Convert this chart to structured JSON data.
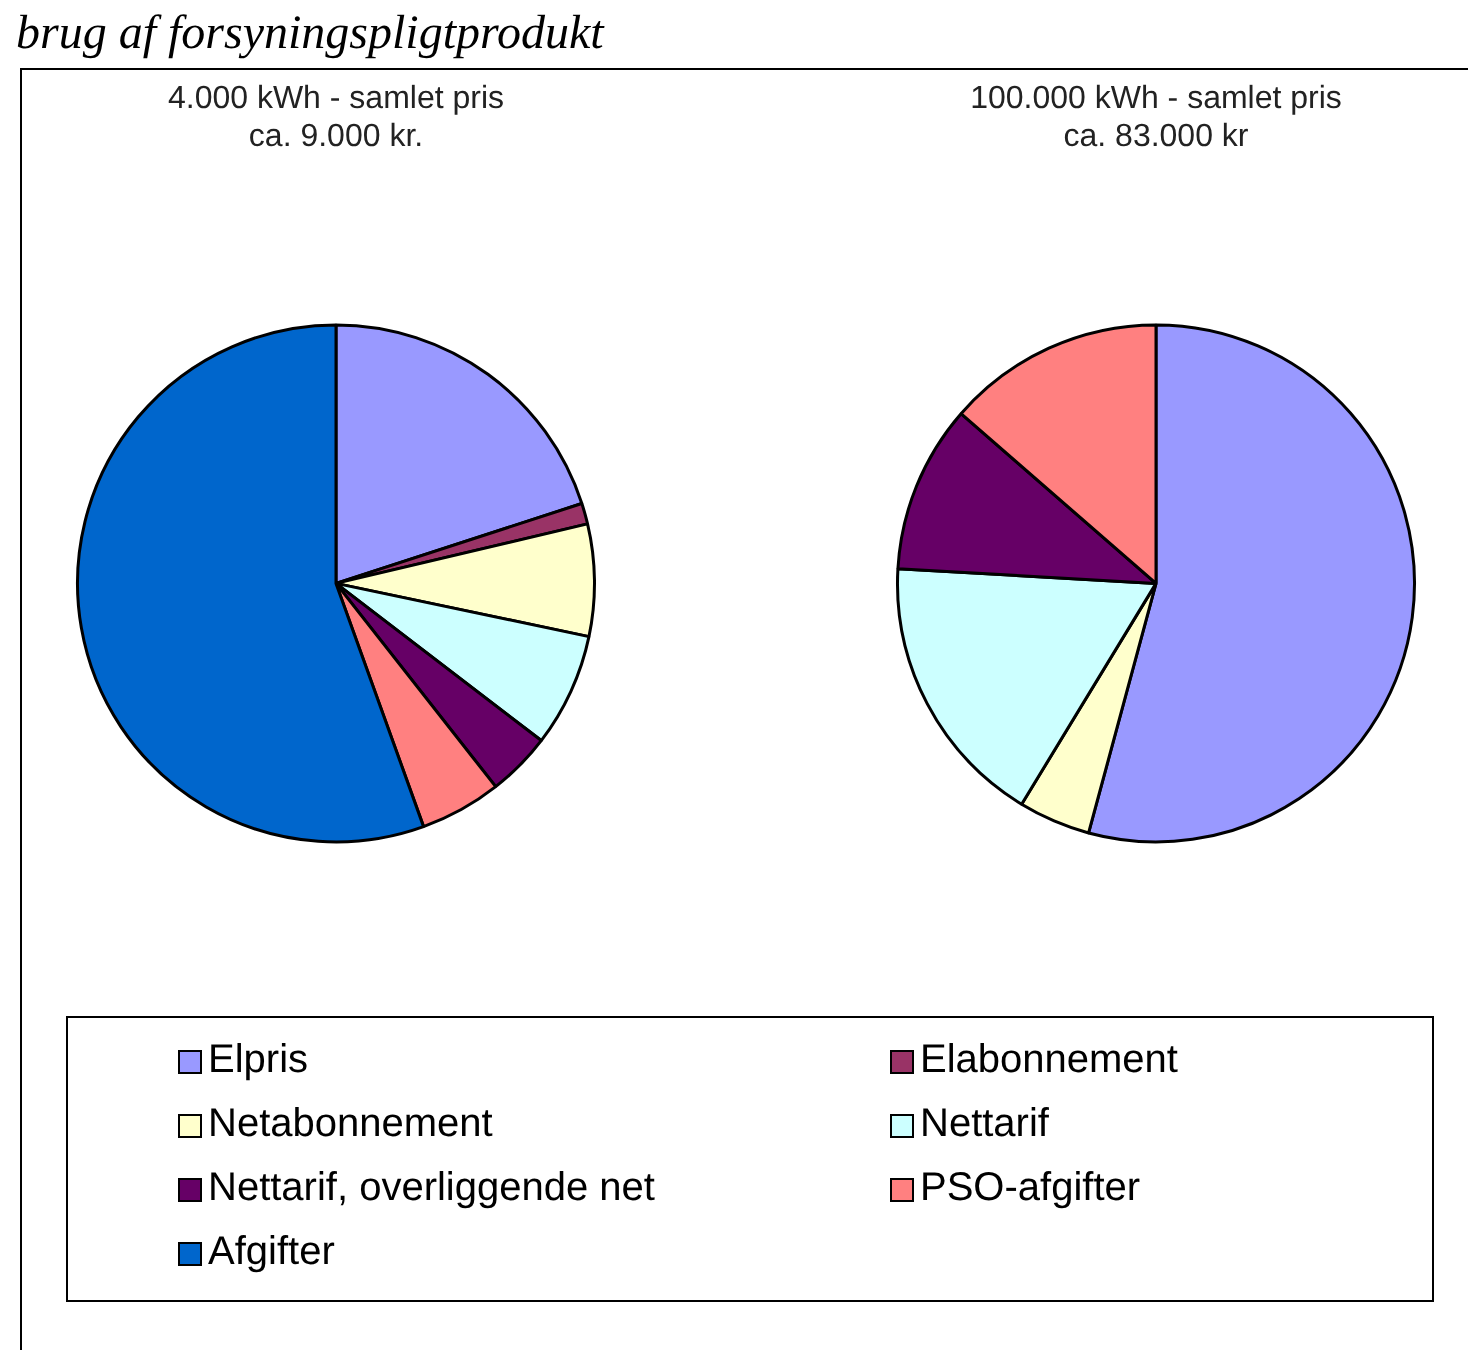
{
  "chart_data": [
    {
      "type": "pie",
      "title": "4.000 kWh - samlet pris\nca. 9.000 kr.",
      "annotations": [
        "brug af forsyningspligtprodukt"
      ],
      "legend": "bottom",
      "categories": [
        "Elpris",
        "Elabonnement",
        "Netabonnement",
        "Nettarif",
        "Nettarif, overliggende net",
        "PSO-afgifter",
        "Afgifter"
      ],
      "values": [
        20,
        1.3,
        7,
        7.1,
        4,
        5.1,
        55.5
      ],
      "colors": [
        "#9999ff",
        "#993366",
        "#ffffcc",
        "#ccffff",
        "#660066",
        "#ff8080",
        "#0066cc"
      ]
    },
    {
      "type": "pie",
      "title": "100.000 kWh - samlet pris\nca. 83.000 kr",
      "categories": [
        null,
        null,
        null,
        null,
        null,
        null,
        null
      ],
      "values": [
        54.2,
        0,
        4.5,
        17.2,
        10.5,
        13.6,
        0
      ],
      "colors": [
        "#9999ff",
        "#993366",
        "#ffffcc",
        "#ccffff",
        "#660066",
        "#ff8080",
        "#0066cc"
      ]
    }
  ]
}
